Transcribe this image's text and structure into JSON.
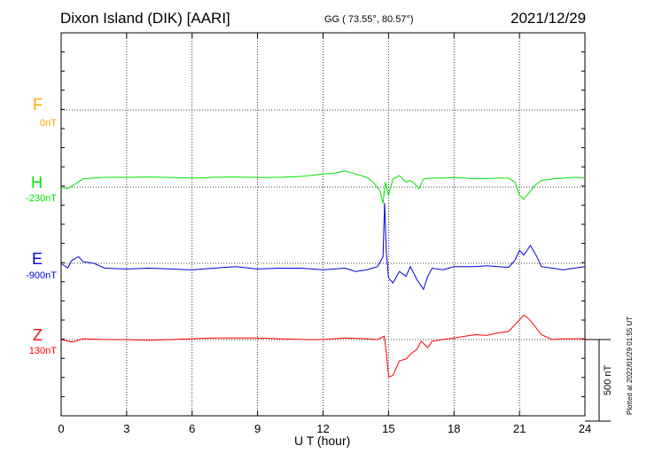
{
  "header": {
    "station": "Dixon Island (DIK)  [AARI]",
    "coords": "GG ( 73.55°,  80.57°)",
    "date": "2021/12/29"
  },
  "plotted_note": "Plotted at 2022/01/29 01:55 UT",
  "scale_label": "500 nT",
  "chart_data": {
    "type": "line",
    "xlabel": "U T (hour)",
    "xlim": [
      0,
      24
    ],
    "xticks": [
      0,
      3,
      6,
      9,
      12,
      15,
      18,
      21,
      24
    ],
    "grid": true,
    "scale_bar_nT": 500,
    "series": [
      {
        "name": "F",
        "baseline_label": "0nT",
        "color": "#ffa500",
        "baseline": 0,
        "x": [],
        "values": []
      },
      {
        "name": "H",
        "baseline_label": "-230nT",
        "color": "#00e600",
        "baseline": -230,
        "x": [
          0,
          0.3,
          0.6,
          1,
          1.5,
          2,
          3,
          4,
          5,
          6,
          7,
          8,
          9,
          10,
          11,
          12,
          12.5,
          13,
          13.5,
          14,
          14.3,
          14.6,
          14.75,
          14.85,
          15,
          15.2,
          15.5,
          15.8,
          16,
          16.2,
          16.4,
          16.6,
          17,
          17.5,
          18,
          18.5,
          19,
          19.5,
          20,
          20.5,
          20.8,
          21,
          21.2,
          21.4,
          21.7,
          22,
          22.5,
          23,
          23.5,
          24
        ],
        "values": [
          -230,
          -240,
          -215,
          -180,
          -175,
          -170,
          -170,
          -168,
          -172,
          -175,
          -170,
          -168,
          -172,
          -170,
          -165,
          -150,
          -145,
          -130,
          -150,
          -170,
          -200,
          -250,
          -330,
          -200,
          -280,
          -180,
          -160,
          -200,
          -190,
          -210,
          -240,
          -180,
          -175,
          -175,
          -170,
          -175,
          -180,
          -178,
          -175,
          -175,
          -200,
          -280,
          -305,
          -270,
          -220,
          -190,
          -180,
          -175,
          -170,
          -175
        ]
      },
      {
        "name": "E",
        "baseline_label": "-900nT",
        "color": "#0000e0",
        "baseline": -900,
        "x": [
          0,
          0.3,
          0.5,
          0.8,
          1,
          1.5,
          2,
          3,
          4,
          5,
          6,
          7,
          8,
          9,
          10,
          11,
          12,
          13,
          13.5,
          14,
          14.5,
          14.75,
          14.82,
          14.9,
          15,
          15.2,
          15.5,
          15.8,
          16,
          16.3,
          16.6,
          16.8,
          17,
          17.5,
          18,
          18.5,
          19,
          19.5,
          20,
          20.5,
          20.8,
          21,
          21.2,
          21.5,
          21.8,
          22,
          22.5,
          23,
          23.5,
          24
        ],
        "values": [
          -900,
          -930,
          -880,
          -860,
          -890,
          -900,
          -930,
          -935,
          -930,
          -935,
          -940,
          -930,
          -920,
          -935,
          -930,
          -930,
          -940,
          -930,
          -950,
          -940,
          -920,
          -860,
          -530,
          -830,
          -990,
          -1020,
          -950,
          -980,
          -920,
          -1000,
          -1060,
          -980,
          -930,
          -940,
          -920,
          -920,
          -920,
          -915,
          -920,
          -925,
          -880,
          -820,
          -850,
          -790,
          -860,
          -920,
          -930,
          -940,
          -930,
          -920
        ]
      },
      {
        "name": "Z",
        "baseline_label": "130nT",
        "color": "#ff0000",
        "baseline": 130,
        "x": [
          0,
          0.5,
          1,
          2,
          3,
          4,
          5,
          6,
          7,
          8,
          9,
          10,
          11,
          12,
          13,
          14,
          14.5,
          14.8,
          14.9,
          15,
          15.2,
          15.5,
          15.8,
          16,
          16.3,
          16.5,
          16.8,
          17,
          17.5,
          18,
          18.5,
          19,
          19.5,
          20,
          20.5,
          21,
          21.2,
          21.4,
          21.6,
          22,
          22.5,
          23,
          24
        ],
        "values": [
          130,
          115,
          135,
          130,
          130,
          125,
          130,
          135,
          140,
          140,
          140,
          135,
          130,
          130,
          140,
          135,
          130,
          150,
          50,
          -100,
          -90,
          0,
          10,
          40,
          70,
          120,
          80,
          120,
          130,
          140,
          150,
          160,
          155,
          170,
          180,
          250,
          280,
          260,
          230,
          160,
          130,
          135,
          135
        ]
      }
    ]
  }
}
